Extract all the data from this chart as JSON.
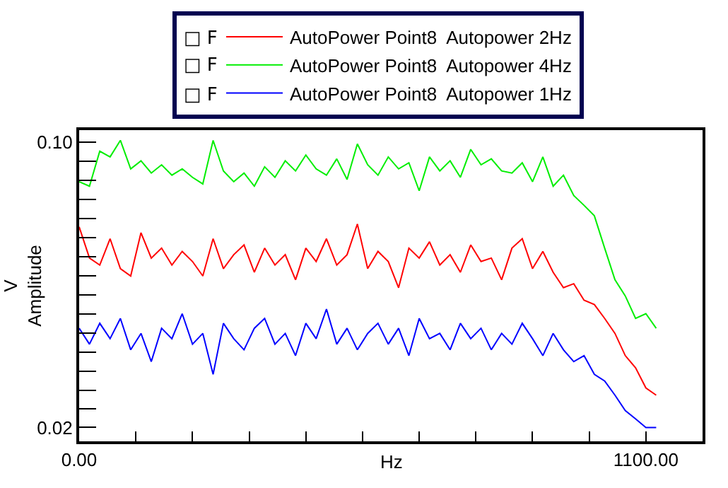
{
  "chart_data": {
    "type": "line",
    "xlabel": "Hz",
    "ylabel": "V\nAmplitude",
    "x": [
      0,
      20,
      40,
      60,
      80,
      100,
      120,
      140,
      160,
      180,
      200,
      220,
      240,
      260,
      280,
      300,
      320,
      340,
      360,
      380,
      400,
      420,
      440,
      460,
      480,
      500,
      520,
      540,
      560,
      580,
      600,
      620,
      640,
      660,
      680,
      700,
      720,
      740,
      760,
      780,
      800,
      820,
      840,
      860,
      880,
      900,
      920,
      940,
      960,
      980,
      1000,
      1020,
      1040,
      1060,
      1080,
      1100,
      1120
    ],
    "series": [
      {
        "name": "AutoPower Point8  Autopower 2Hz",
        "color": "#ff0000",
        "values": [
          0.062,
          0.052,
          0.05,
          0.058,
          0.049,
          0.047,
          0.06,
          0.052,
          0.055,
          0.05,
          0.054,
          0.051,
          0.047,
          0.058,
          0.049,
          0.053,
          0.056,
          0.048,
          0.055,
          0.05,
          0.053,
          0.046,
          0.055,
          0.051,
          0.058,
          0.05,
          0.053,
          0.063,
          0.049,
          0.054,
          0.051,
          0.044,
          0.055,
          0.052,
          0.057,
          0.05,
          0.053,
          0.048,
          0.056,
          0.051,
          0.052,
          0.046,
          0.055,
          0.058,
          0.049,
          0.054,
          0.048,
          0.044,
          0.045,
          0.041,
          0.04,
          0.037,
          0.034,
          0.03,
          0.028,
          0.025,
          0.024
        ]
      },
      {
        "name": "AutoPower Point8  Autopower 4Hz",
        "color": "#00ee00",
        "values": [
          0.08,
          0.078,
          0.095,
          0.092,
          0.101,
          0.086,
          0.09,
          0.084,
          0.088,
          0.083,
          0.086,
          0.082,
          0.079,
          0.101,
          0.085,
          0.08,
          0.084,
          0.078,
          0.087,
          0.082,
          0.09,
          0.085,
          0.093,
          0.086,
          0.083,
          0.091,
          0.081,
          0.099,
          0.088,
          0.083,
          0.092,
          0.086,
          0.089,
          0.076,
          0.092,
          0.085,
          0.09,
          0.082,
          0.096,
          0.088,
          0.091,
          0.085,
          0.084,
          0.089,
          0.08,
          0.092,
          0.078,
          0.083,
          0.074,
          0.07,
          0.066,
          0.055,
          0.046,
          0.042,
          0.037,
          0.038,
          0.035
        ]
      },
      {
        "name": "AutoPower Point8  Autopower 1Hz",
        "color": "#0000ff",
        "values": [
          0.035,
          0.032,
          0.036,
          0.033,
          0.037,
          0.031,
          0.034,
          0.029,
          0.035,
          0.033,
          0.038,
          0.032,
          0.034,
          0.027,
          0.036,
          0.033,
          0.031,
          0.035,
          0.037,
          0.032,
          0.034,
          0.03,
          0.036,
          0.033,
          0.039,
          0.032,
          0.035,
          0.031,
          0.034,
          0.036,
          0.032,
          0.035,
          0.03,
          0.037,
          0.033,
          0.034,
          0.031,
          0.036,
          0.033,
          0.035,
          0.031,
          0.034,
          0.032,
          0.036,
          0.033,
          0.03,
          0.034,
          0.031,
          0.029,
          0.03,
          0.027,
          0.026,
          0.024,
          0.022,
          0.021,
          0.02,
          0.02
        ]
      }
    ],
    "annotations": [
      "□ F",
      "□ F",
      "□ F"
    ],
    "log": "y",
    "legend": "top",
    "marker": "none",
    "line_style": "solid",
    "xlim": [
      0,
      1210
    ],
    "xticks": [
      {
        "value": 0,
        "label": "0.00"
      },
      {
        "value": 110,
        "label": null
      },
      {
        "value": 220,
        "label": null
      },
      {
        "value": 330,
        "label": null
      },
      {
        "value": 440,
        "label": null
      },
      {
        "value": 550,
        "label": null
      },
      {
        "value": 660,
        "label": null
      },
      {
        "value": 770,
        "label": null
      },
      {
        "value": 880,
        "label": null
      },
      {
        "value": 990,
        "label": null
      },
      {
        "value": 1100,
        "label": "1100.00"
      }
    ],
    "ylim": [
      0.0185,
      0.107
    ],
    "yticks": [
      {
        "value": 0.1,
        "label": "0.10"
      },
      {
        "value": 0.0898,
        "label": null
      },
      {
        "value": 0.0806,
        "label": null
      },
      {
        "value": 0.0724,
        "label": null
      },
      {
        "value": 0.065,
        "label": null
      },
      {
        "value": 0.0584,
        "label": null
      },
      {
        "value": 0.0524,
        "label": null
      },
      {
        "value": 0.0471,
        "label": null
      },
      {
        "value": 0.0423,
        "label": null
      },
      {
        "value": 0.038,
        "label": null
      },
      {
        "value": 0.0341,
        "label": null
      },
      {
        "value": 0.0306,
        "label": null
      },
      {
        "value": 0.0275,
        "label": null
      },
      {
        "value": 0.0247,
        "label": null
      },
      {
        "value": 0.0222,
        "label": null
      },
      {
        "value": 0.02,
        "label": "0.02"
      }
    ]
  }
}
